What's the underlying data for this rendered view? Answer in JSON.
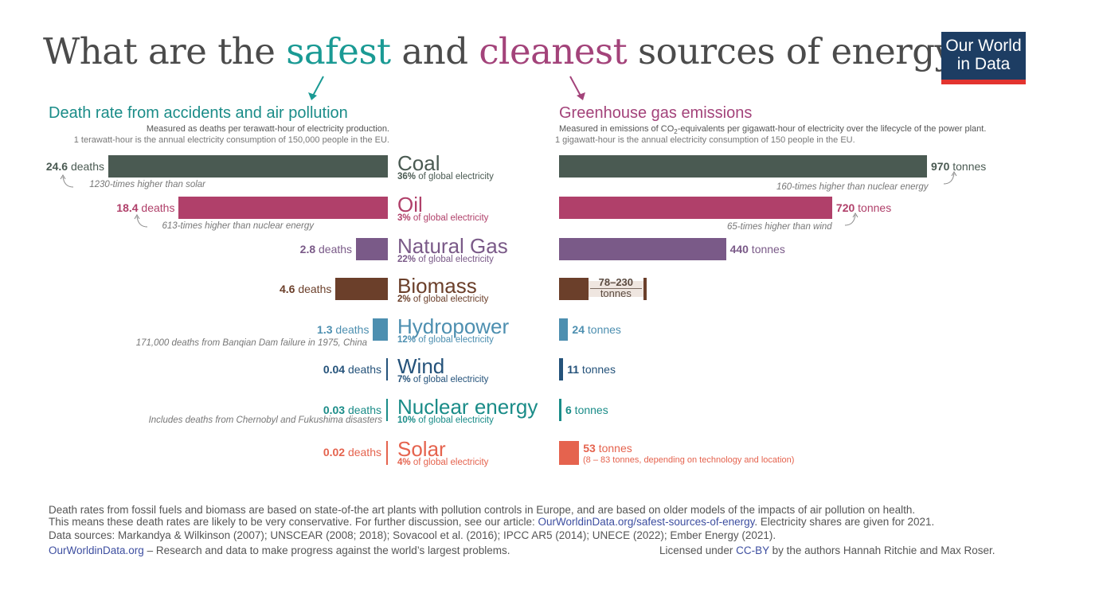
{
  "title": {
    "part1": "What are the ",
    "safest": "safest",
    "part2": " and ",
    "cleanest": "cleanest",
    "part3": " sources of energy?"
  },
  "logo": {
    "line1": "Our World",
    "line2": "in Data"
  },
  "colors": {
    "teal": "#1a9a94",
    "magenta": "#a3437a"
  },
  "left_panel": {
    "heading": "Death rate from accidents and air pollution",
    "sub1": "Measured as deaths per terawatt-hour of electricity production.",
    "sub2": "1 terawatt-hour is the annual electricity consumption of 150,000 people in the EU."
  },
  "right_panel": {
    "heading": "Greenhouse gas emissions",
    "sub1_a": "Measured in emissions of CO",
    "sub1_sub": "2",
    "sub1_b": "-equivalents per gigawatt-hour of electricity over the lifecycle of the power plant.",
    "sub2": "1 gigawatt-hour is the annual electricity consumption of 150 people in the EU."
  },
  "chart_data": [
    {
      "type": "bar",
      "title": "Death rate from accidents and air pollution",
      "unit": "deaths",
      "categories": [
        "Coal",
        "Oil",
        "Natural Gas",
        "Biomass",
        "Hydropower",
        "Wind",
        "Nuclear energy",
        "Solar"
      ],
      "values": [
        24.6,
        18.4,
        2.8,
        4.6,
        1.3,
        0.04,
        0.03,
        0.02
      ],
      "labels": [
        "24.6",
        "18.4",
        "2.8",
        "4.6",
        "1.3",
        "0.04",
        "0.03",
        "0.02"
      ],
      "annotations": {
        "Coal": "1230-times higher than solar",
        "Oil": "613-times higher than nuclear energy",
        "Hydropower": "171,000 deaths from Banqian Dam failure in 1975, China",
        "Nuclear energy": "Includes deaths from Chernobyl and Fukushima disasters"
      }
    },
    {
      "type": "bar",
      "title": "Greenhouse gas emissions",
      "unit": "tonnes",
      "categories": [
        "Coal",
        "Oil",
        "Natural Gas",
        "Biomass",
        "Hydropower",
        "Wind",
        "Nuclear energy",
        "Solar"
      ],
      "values": [
        970,
        720,
        440,
        230,
        24,
        11,
        6,
        53
      ],
      "range_low": {
        "Biomass": 78
      },
      "labels": [
        "970",
        "720",
        "440",
        "78–230",
        "24",
        "11",
        "6",
        "53"
      ],
      "annotations": {
        "Coal": "160-times higher than nuclear energy",
        "Oil": "65-times higher than wind",
        "Solar": "(8 – 83 tonnes, depending on technology and location)"
      }
    }
  ],
  "sources": [
    {
      "name": "Coal",
      "share": "36%",
      "share_text": " of global electricity",
      "color": "#4a5a52"
    },
    {
      "name": "Oil",
      "share": "3%",
      "share_text": " of global electricity",
      "color": "#b0406a"
    },
    {
      "name": "Natural Gas",
      "share": "22%",
      "share_text": " of global electricity",
      "color": "#7a5a88"
    },
    {
      "name": "Biomass",
      "share": "2%",
      "share_text": " of global electricity",
      "color": "#6b3f2a"
    },
    {
      "name": "Hydropower",
      "share": "12%",
      "share_text": " of global electricity",
      "color": "#4d8fb0"
    },
    {
      "name": "Wind",
      "share": "7%",
      "share_text": " of global electricity",
      "color": "#24527a"
    },
    {
      "name": "Nuclear energy",
      "share": "10%",
      "share_text": " of global electricity",
      "color": "#1a8c88"
    },
    {
      "name": "Solar",
      "share": "4%",
      "share_text": " of global electricity",
      "color": "#e5634e"
    }
  ],
  "units": {
    "deaths": "deaths",
    "tonnes": "tonnes"
  },
  "footer": {
    "line1": "Death rates from fossil fuels and biomass are based on state-of-the art plants with pollution controls in Europe, and are based on older models of the impacts of air pollution on health.",
    "line2_a": "This means these death rates are likely to be very conservative. For further discussion, see our article: ",
    "line2_link": "OurWorldinData.org/safest-sources-of-energy",
    "line2_b": ". Electricity shares are given for 2021.",
    "line3": "Data sources: Markandya & Wilkinson (2007); UNSCEAR (2008; 2018); Sovacool et al. (2016); IPCC AR5 (2014); UNECE (2022); Ember Energy (2021).",
    "line4_link": "OurWorldinData.org",
    "line4_b": " – Research and data to make progress against the world’s largest problems.",
    "license_a": "Licensed under ",
    "license_link": "CC-BY",
    "license_b": " by the authors Hannah Ritchie and Max Roser."
  }
}
